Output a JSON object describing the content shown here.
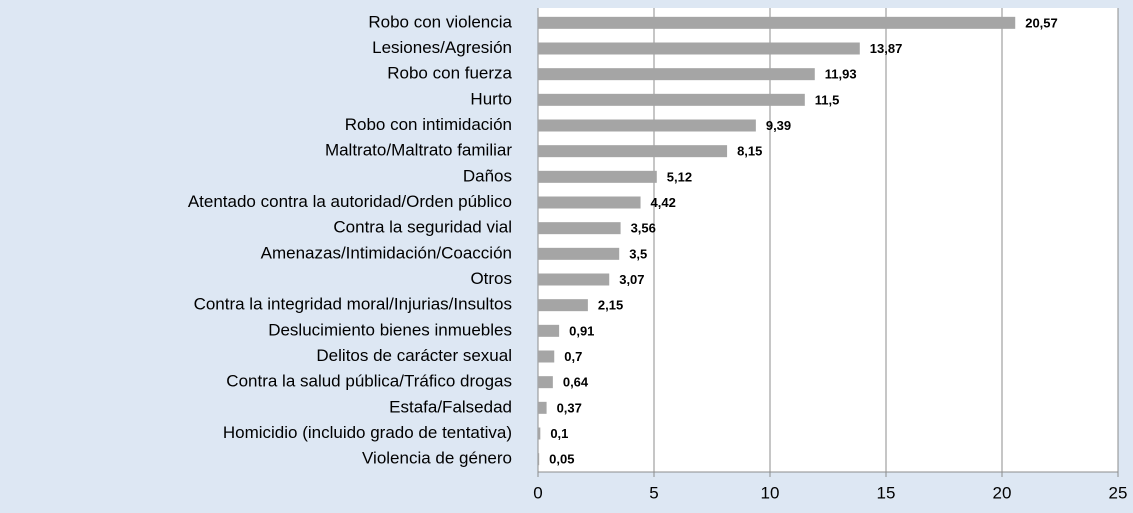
{
  "chart_data": {
    "type": "barh",
    "categories": [
      "Robo con violencia",
      "Lesiones/Agresión",
      "Robo con fuerza",
      "Hurto",
      "Robo con intimidación",
      "Maltrato/Maltrato familiar",
      "Daños",
      "Atentado contra la autoridad/Orden público",
      "Contra la seguridad vial",
      "Amenazas/Intimidación/Coacción",
      "Otros",
      "Contra la integridad moral/Injurias/Insultos",
      "Deslucimiento bienes inmuebles",
      "Delitos de carácter sexual",
      "Contra la salud pública/Tráfico drogas",
      "Estafa/Falsedad",
      "Homicidio (incluido grado de tentativa)",
      "Violencia de género"
    ],
    "values": [
      20.57,
      13.87,
      11.93,
      11.5,
      9.39,
      8.15,
      5.12,
      4.42,
      3.56,
      3.5,
      3.07,
      2.15,
      0.91,
      0.7,
      0.64,
      0.37,
      0.1,
      0.05
    ],
    "value_labels": [
      "20,57",
      "13,87",
      "11,93",
      "11,5",
      "9,39",
      "8,15",
      "5,12",
      "4,42",
      "3,56",
      "3,5",
      "3,07",
      "2,15",
      "0,91",
      "0,7",
      "0,64",
      "0,37",
      "0,1",
      "0,05"
    ],
    "color": "#a5a5a5",
    "xlim": [
      0,
      25
    ],
    "xticks": [
      0,
      5,
      10,
      15,
      20,
      25
    ],
    "grid": true
  }
}
